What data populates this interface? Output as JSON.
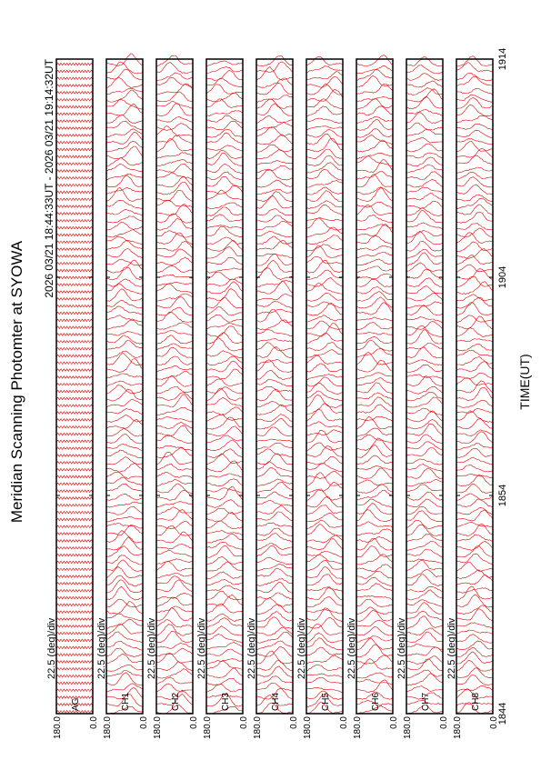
{
  "chart_data": {
    "type": "line",
    "title": "Meridian Scanning Photomter at SYOWA",
    "subtitle": "2026 03/21 18:44:33UT - 2026 03/21 19:14:32UT",
    "xlabel": "TIME(UT)",
    "scale_label": "22.5 (deg)/div",
    "panels": [
      "AG",
      "CH1",
      "CH2",
      "CH3",
      "CH4",
      "CH5",
      "CH6",
      "CH7",
      "CH8"
    ],
    "xlim": [
      0,
      30
    ],
    "xticks": [
      {
        "value": 0,
        "label": "1844"
      },
      {
        "value": 10,
        "label": "1854"
      },
      {
        "value": 20,
        "label": "1904"
      },
      {
        "value": 30,
        "label": "1914"
      }
    ],
    "ylim": [
      0,
      180
    ],
    "yticks": [
      {
        "value": 180,
        "label": "180.0"
      },
      {
        "value": 0,
        "label": "0.0"
      }
    ],
    "color": "#e00000"
  }
}
